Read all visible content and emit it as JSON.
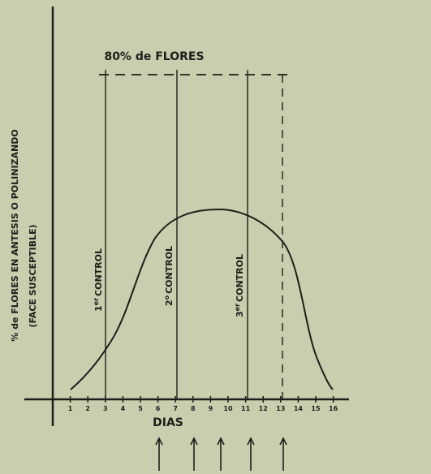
{
  "title": "80% de FLORES",
  "y_axis_label": [
    "% de FLORES EN ANTESIS O POLINIZANDO",
    "(FACE SUSCEPTIBLE)"
  ],
  "x_axis_label": "DIAS",
  "x_ticks": [
    1,
    2,
    3,
    4,
    5,
    6,
    7,
    8,
    9,
    10,
    11,
    12,
    13,
    14,
    15,
    16
  ],
  "controls": [
    {
      "number": "1",
      "suffix": "er",
      "word": "CONTROL"
    },
    {
      "number": "2",
      "suffix": "o",
      "word": "CONTROL"
    },
    {
      "number": "3",
      "suffix": "er",
      "word": "CONTROL"
    }
  ]
}
